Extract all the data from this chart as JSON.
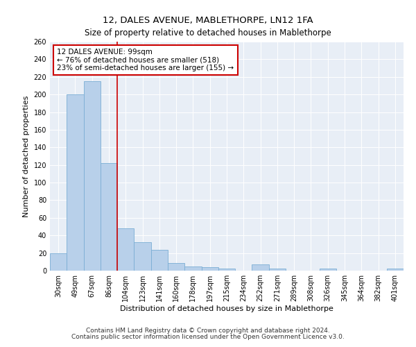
{
  "title": "12, DALES AVENUE, MABLETHORPE, LN12 1FA",
  "subtitle": "Size of property relative to detached houses in Mablethorpe",
  "xlabel": "Distribution of detached houses by size in Mablethorpe",
  "ylabel": "Number of detached properties",
  "categories": [
    "30sqm",
    "49sqm",
    "67sqm",
    "86sqm",
    "104sqm",
    "123sqm",
    "141sqm",
    "160sqm",
    "178sqm",
    "197sqm",
    "215sqm",
    "234sqm",
    "252sqm",
    "271sqm",
    "289sqm",
    "308sqm",
    "326sqm",
    "345sqm",
    "364sqm",
    "382sqm",
    "401sqm"
  ],
  "values": [
    20,
    200,
    215,
    122,
    48,
    32,
    24,
    9,
    5,
    4,
    2,
    0,
    7,
    2,
    0,
    0,
    2,
    0,
    0,
    0,
    2
  ],
  "bar_color": "#b8d0ea",
  "bar_edge_color": "#7aadd4",
  "property_line_x": 3.5,
  "property_line_color": "#cc0000",
  "annotation_text": "12 DALES AVENUE: 99sqm\n← 76% of detached houses are smaller (518)\n23% of semi-detached houses are larger (155) →",
  "annotation_box_color": "white",
  "annotation_box_edge_color": "#cc0000",
  "ylim": [
    0,
    260
  ],
  "yticks": [
    0,
    20,
    40,
    60,
    80,
    100,
    120,
    140,
    160,
    180,
    200,
    220,
    240,
    260
  ],
  "footnote1": "Contains HM Land Registry data © Crown copyright and database right 2024.",
  "footnote2": "Contains public sector information licensed under the Open Government Licence v3.0.",
  "plot_bg_color": "#e8eef6",
  "title_fontsize": 9.5,
  "subtitle_fontsize": 8.5,
  "xlabel_fontsize": 8,
  "ylabel_fontsize": 8,
  "tick_fontsize": 7,
  "annot_fontsize": 7.5,
  "footnote_fontsize": 6.5
}
